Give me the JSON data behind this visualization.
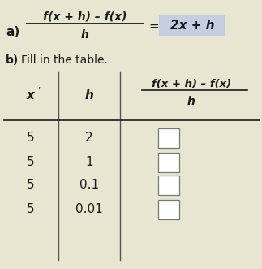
{
  "background_color": "#e8e6d0",
  "highlight_color": "#c5cde0",
  "part_a_label": "a)",
  "fraction_numerator": "f(x + h) – f(x)",
  "fraction_denominator": "h",
  "part_b_label": "b) Fill in the table.",
  "rows": [
    [
      "5",
      "2"
    ],
    [
      "5",
      "1"
    ],
    [
      "5",
      "0.1"
    ],
    [
      "5",
      "0.01"
    ]
  ],
  "box_color": "#ffffff",
  "text_color": "#1a1a1a",
  "bold_color": "#1a1a1a",
  "line_color": "#555555"
}
